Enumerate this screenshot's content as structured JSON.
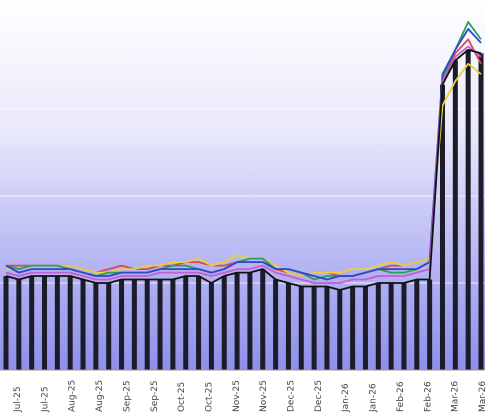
{
  "chart_data": {
    "type": "bar",
    "title": "",
    "xlabel": "",
    "ylabel": "",
    "ylim": [
      0,
      100
    ],
    "grid": true,
    "legend": "none",
    "x_tick_labels": [
      "Jul-25",
      "Jul-25",
      "Aug-25",
      "Aug-25",
      "Sep-25",
      "Sep-25",
      "Oct-25",
      "Oct-25",
      "Nov-25",
      "Nov-25",
      "Dec-25",
      "Dec-25",
      "Jan-26",
      "Jan-26",
      "Feb-26",
      "Feb-26",
      "Mar-26",
      "Mar-26"
    ],
    "bars": {
      "color": "#1b1b2a",
      "values": [
        27,
        26,
        27,
        27,
        27,
        27,
        26,
        25,
        25,
        26,
        26,
        26,
        26,
        26,
        27,
        27,
        25,
        27,
        28,
        28,
        29,
        26,
        25,
        24,
        24,
        24,
        23,
        24,
        24,
        25,
        25,
        25,
        26,
        26,
        82,
        89,
        92,
        91
      ]
    },
    "series": [
      {
        "color": "#d94a55",
        "values": [
          30,
          30,
          30,
          30,
          30,
          30,
          29,
          28,
          29,
          30,
          29,
          29,
          30,
          30,
          31,
          31,
          30,
          30,
          31,
          31,
          31,
          29,
          28,
          27,
          28,
          28,
          27,
          27,
          28,
          29,
          30,
          30,
          31,
          32,
          84,
          91,
          95,
          88
        ]
      },
      {
        "color": "#e8d040",
        "values": [
          29,
          29,
          30,
          30,
          30,
          30,
          29,
          28,
          28,
          29,
          29,
          30,
          30,
          31,
          31,
          32,
          30,
          31,
          33,
          32,
          32,
          30,
          28,
          27,
          28,
          28,
          28,
          29,
          29,
          30,
          31,
          30,
          31,
          32,
          76,
          83,
          88,
          85
        ]
      },
      {
        "color": "#2b9e5c",
        "values": [
          30,
          29,
          30,
          30,
          30,
          29,
          28,
          27,
          28,
          28,
          28,
          28,
          29,
          30,
          30,
          29,
          28,
          29,
          31,
          32,
          32,
          29,
          29,
          28,
          26,
          27,
          27,
          27,
          28,
          29,
          28,
          28,
          29,
          31,
          84,
          92,
          100,
          95
        ]
      },
      {
        "color": "#3048c8",
        "values": [
          30,
          28,
          29,
          29,
          29,
          29,
          28,
          27,
          27,
          28,
          28,
          28,
          29,
          29,
          29,
          29,
          28,
          29,
          31,
          31,
          31,
          29,
          29,
          28,
          27,
          26,
          27,
          27,
          28,
          29,
          29,
          29,
          29,
          31,
          85,
          92,
          98,
          94
        ]
      },
      {
        "color": "#c85cd0",
        "values": [
          28,
          27,
          28,
          28,
          28,
          28,
          27,
          26,
          26,
          27,
          27,
          27,
          28,
          28,
          28,
          28,
          27,
          28,
          29,
          29,
          30,
          28,
          27,
          26,
          25,
          25,
          25,
          26,
          26,
          27,
          27,
          27,
          28,
          29,
          83,
          90,
          93,
          90
        ]
      },
      {
        "color": "#111111",
        "values": [
          27,
          26,
          27,
          27,
          27,
          27,
          26,
          25,
          25,
          26,
          26,
          26,
          26,
          26,
          27,
          27,
          25,
          27,
          28,
          28,
          29,
          26,
          25,
          24,
          24,
          24,
          23,
          24,
          24,
          25,
          25,
          25,
          26,
          26,
          82,
          89,
          92,
          91
        ]
      }
    ]
  }
}
